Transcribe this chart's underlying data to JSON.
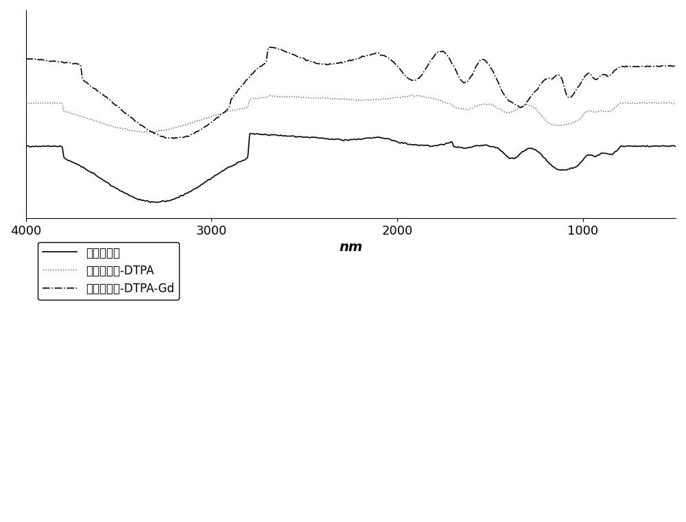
{
  "title": "",
  "xlabel": "nm",
  "xlabel_fontsize": 14,
  "xlabel_style": "italic",
  "xlim": [
    500,
    4000
  ],
  "xticks": [
    4000,
    3000,
    2000,
    1000
  ],
  "background_color": "#ffffff",
  "line1_color": "#000000",
  "line2_color": "#555555",
  "line3_color": "#000000",
  "line1_label": "普鲁兰多糖",
  "line2_label": "普鲁兰多糖-DTPA",
  "line3_label": "普鲁兰多糖-DTPA-Gd",
  "figsize": [
    10.0,
    7.61
  ],
  "dpi": 100
}
